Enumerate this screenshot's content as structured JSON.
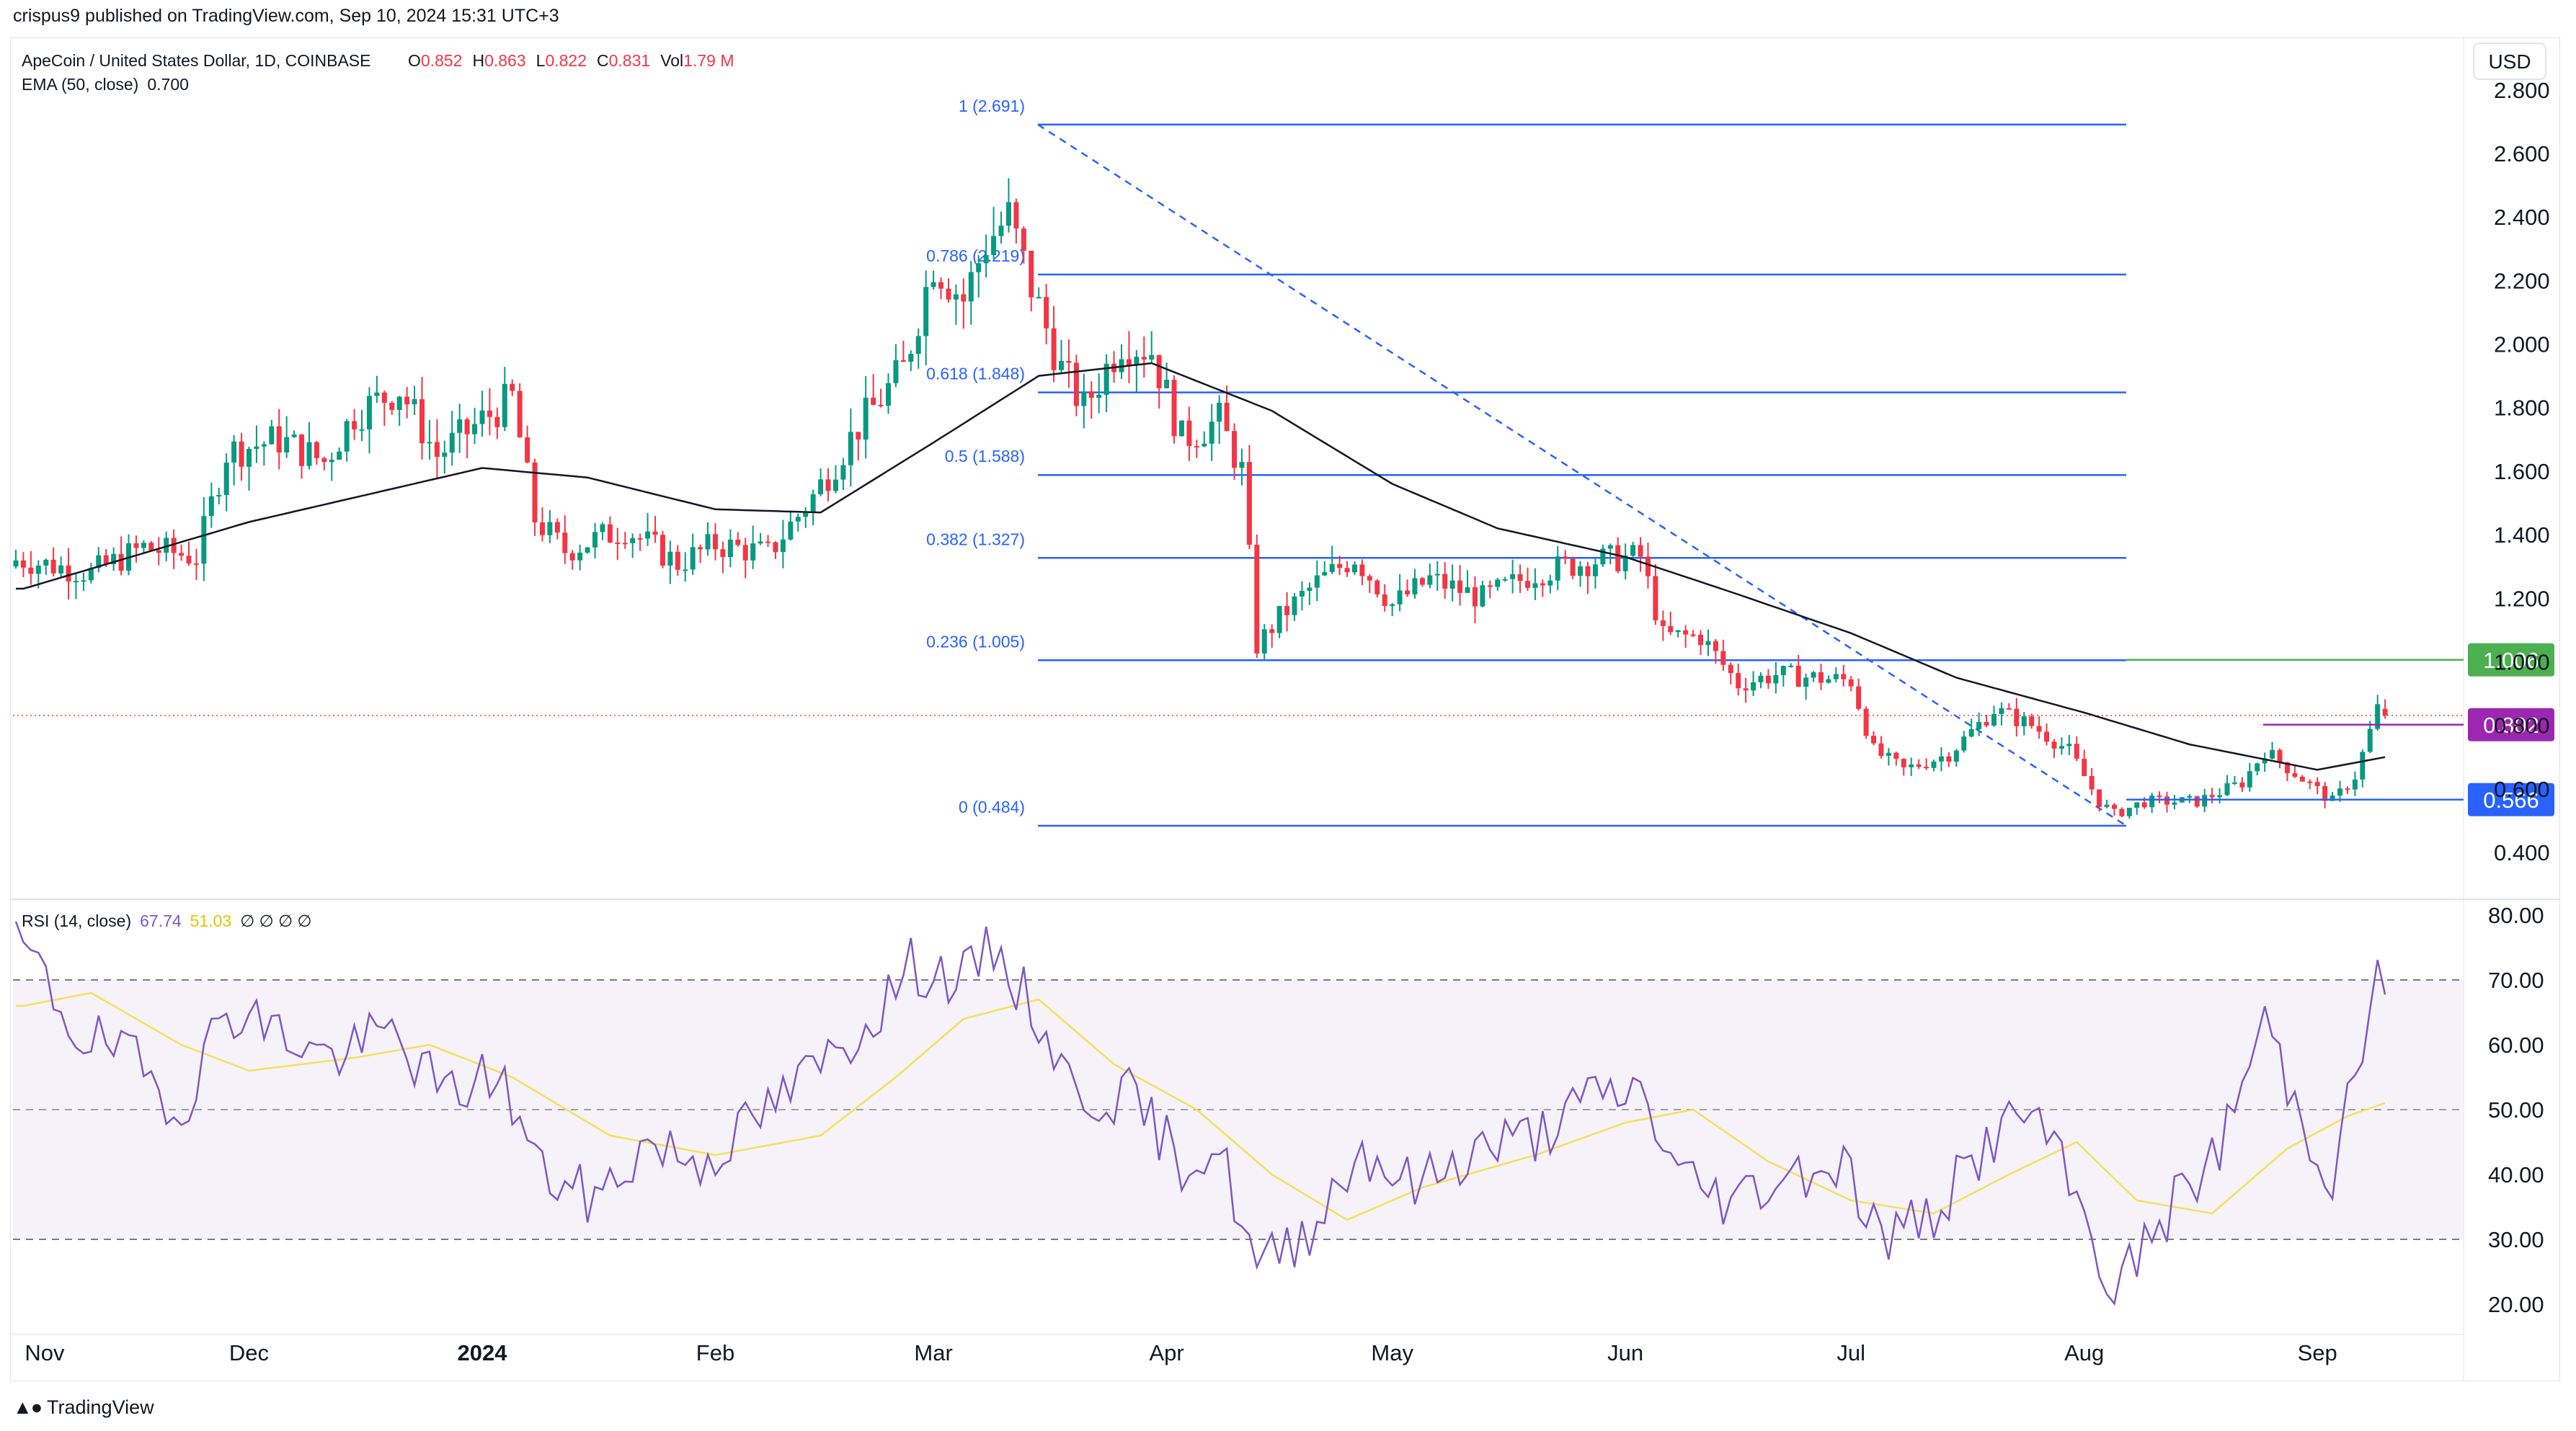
{
  "publisher_line": "crispus9 published on TradingView.com, Sep 10, 2024 15:31 UTC+3",
  "brand": "TradingView",
  "currency_button": "USD",
  "legend": {
    "symbol": "ApeCoin / United States Dollar, 1D, COINBASE",
    "o_label": "O",
    "o_value": "0.852",
    "h_label": "H",
    "h_value": "0.863",
    "l_label": "L",
    "l_value": "0.822",
    "c_label": "C",
    "c_value": "0.831",
    "vol_label": "Vol",
    "vol_value": "1.79 M",
    "ema_label": "EMA (50, close)",
    "ema_value": "0.700",
    "rsi_label": "RSI (14, close)",
    "rsi_value": "67.74",
    "rsi_ma_value": "51.03",
    "rsi_extra": "∅ ∅ ∅ ∅"
  },
  "colors": {
    "up": "#089981",
    "down": "#f23645",
    "ema": "#131722",
    "fib": "#2962ff",
    "rsi": "#7e57c2",
    "rsi_ma": "#f5e05a",
    "rsi_band": "#ede7f6",
    "marker_green": "#4caf50",
    "marker_purple": "#9c27b0",
    "marker_blue": "#2962ff"
  },
  "price_axis_labels": [
    "2.800",
    "2.600",
    "2.400",
    "2.200",
    "2.000",
    "1.800",
    "1.600",
    "1.400",
    "1.200",
    "1.000",
    "0.800",
    "0.600",
    "0.400"
  ],
  "rsi_axis_labels": [
    "80.00",
    "70.00",
    "60.00",
    "50.00",
    "40.00",
    "30.00",
    "20.00"
  ],
  "time_axis_labels": [
    "Nov",
    "Dec",
    "2024",
    "Feb",
    "Mar",
    "Apr",
    "May",
    "Jun",
    "Jul",
    "Aug",
    "Sep"
  ],
  "price_markers": [
    {
      "value": "1.006",
      "color": "#4caf50"
    },
    {
      "value": "0.802",
      "color": "#9c27b0"
    },
    {
      "value": "0.566",
      "color": "#2962ff"
    }
  ],
  "fib_levels": [
    {
      "label": "1 (2.691)",
      "price": 2.691
    },
    {
      "label": "0.786 (2.219)",
      "price": 2.219
    },
    {
      "label": "0.618 (1.848)",
      "price": 1.848
    },
    {
      "label": "0.5 (1.588)",
      "price": 1.588
    },
    {
      "label": "0.382 (1.327)",
      "price": 1.327
    },
    {
      "label": "0.236 (1.005)",
      "price": 1.005
    },
    {
      "label": "0 (0.484)",
      "price": 0.484
    }
  ],
  "chart_data": [
    {
      "type": "candlestick",
      "title": "ApeCoin / United States Dollar, 1D, COINBASE",
      "x_months": [
        "Nov",
        "Dec",
        "2024",
        "Feb",
        "Mar",
        "Apr",
        "May",
        "Jun",
        "Jul",
        "Aug",
        "Sep"
      ],
      "ylim": [
        0.38,
        2.82
      ],
      "grid": false,
      "close_series_anchors": [
        [
          "2023-11-01",
          1.32
        ],
        [
          "2023-11-10",
          1.28
        ],
        [
          "2023-11-17",
          1.36
        ],
        [
          "2023-11-24",
          1.33
        ],
        [
          "2023-11-28",
          1.66
        ],
        [
          "2023-12-05",
          1.7
        ],
        [
          "2023-12-11",
          1.63
        ],
        [
          "2023-12-15",
          1.78
        ],
        [
          "2023-12-21",
          1.86
        ],
        [
          "2023-12-26",
          1.65
        ],
        [
          "2024-01-01",
          1.76
        ],
        [
          "2024-01-05",
          1.83
        ],
        [
          "2024-01-08",
          1.45
        ],
        [
          "2024-01-12",
          1.35
        ],
        [
          "2024-01-20",
          1.42
        ],
        [
          "2024-01-27",
          1.31
        ],
        [
          "2024-02-01",
          1.37
        ],
        [
          "2024-02-08",
          1.34
        ],
        [
          "2024-02-14",
          1.52
        ],
        [
          "2024-02-20",
          1.74
        ],
        [
          "2024-02-26",
          1.92
        ],
        [
          "2024-03-01",
          2.26
        ],
        [
          "2024-03-05",
          2.14
        ],
        [
          "2024-03-08",
          2.32
        ],
        [
          "2024-03-11",
          2.4
        ],
        [
          "2024-03-14",
          2.18
        ],
        [
          "2024-03-18",
          1.92
        ],
        [
          "2024-03-21",
          1.8
        ],
        [
          "2024-03-26",
          2.01
        ],
        [
          "2024-03-30",
          1.98
        ],
        [
          "2024-04-03",
          1.7
        ],
        [
          "2024-04-08",
          1.76
        ],
        [
          "2024-04-11",
          1.6
        ],
        [
          "2024-04-13",
          1.05
        ],
        [
          "2024-04-16",
          1.14
        ],
        [
          "2024-04-21",
          1.25
        ],
        [
          "2024-04-26",
          1.33
        ],
        [
          "2024-05-01",
          1.18
        ],
        [
          "2024-05-06",
          1.26
        ],
        [
          "2024-05-13",
          1.2
        ],
        [
          "2024-05-20",
          1.28
        ],
        [
          "2024-05-28",
          1.32
        ],
        [
          "2024-06-03",
          1.33
        ],
        [
          "2024-06-06",
          1.08
        ],
        [
          "2024-06-11",
          1.08
        ],
        [
          "2024-06-16",
          0.93
        ],
        [
          "2024-06-21",
          0.96
        ],
        [
          "2024-06-26",
          0.95
        ],
        [
          "2024-07-01",
          0.94
        ],
        [
          "2024-07-04",
          0.72
        ],
        [
          "2024-07-08",
          0.66
        ],
        [
          "2024-07-14",
          0.71
        ],
        [
          "2024-07-20",
          0.85
        ],
        [
          "2024-07-25",
          0.8
        ],
        [
          "2024-07-30",
          0.72
        ],
        [
          "2024-08-03",
          0.56
        ],
        [
          "2024-08-05",
          0.52
        ],
        [
          "2024-08-09",
          0.56
        ],
        [
          "2024-08-16",
          0.56
        ],
        [
          "2024-08-22",
          0.62
        ],
        [
          "2024-08-25",
          0.72
        ],
        [
          "2024-08-29",
          0.65
        ],
        [
          "2024-09-03",
          0.56
        ],
        [
          "2024-09-06",
          0.64
        ],
        [
          "2024-09-09",
          0.85
        ],
        [
          "2024-09-10",
          0.831
        ]
      ],
      "ema_anchors": [
        [
          "2023-11-01",
          1.23
        ],
        [
          "2023-12-01",
          1.44
        ],
        [
          "2024-01-01",
          1.61
        ],
        [
          "2024-01-15",
          1.58
        ],
        [
          "2024-02-01",
          1.48
        ],
        [
          "2024-02-15",
          1.47
        ],
        [
          "2024-03-01",
          1.69
        ],
        [
          "2024-03-15",
          1.9
        ],
        [
          "2024-03-30",
          1.94
        ],
        [
          "2024-04-15",
          1.79
        ],
        [
          "2024-05-01",
          1.56
        ],
        [
          "2024-05-15",
          1.42
        ],
        [
          "2024-06-01",
          1.33
        ],
        [
          "2024-06-15",
          1.22
        ],
        [
          "2024-07-01",
          1.09
        ],
        [
          "2024-07-15",
          0.95
        ],
        [
          "2024-08-01",
          0.84
        ],
        [
          "2024-08-15",
          0.74
        ],
        [
          "2024-09-01",
          0.66
        ],
        [
          "2024-09-10",
          0.7
        ]
      ]
    },
    {
      "type": "line",
      "title": "RSI (14, close)",
      "ylim": [
        17,
        82
      ],
      "bands": [
        30,
        50,
        70
      ],
      "series": [
        {
          "name": "RSI (14, close)",
          "anchors": [
            [
              "2023-11-01",
              75
            ],
            [
              "2023-11-08",
              62
            ],
            [
              "2023-11-15",
              58
            ],
            [
              "2023-11-22",
              50
            ],
            [
              "2023-11-28",
              66
            ],
            [
              "2023-12-05",
              62
            ],
            [
              "2023-12-12",
              58
            ],
            [
              "2023-12-20",
              62
            ],
            [
              "2023-12-27",
              52
            ],
            [
              "2024-01-03",
              56
            ],
            [
              "2024-01-09",
              40
            ],
            [
              "2024-01-16",
              36
            ],
            [
              "2024-01-23",
              45
            ],
            [
              "2024-01-30",
              42
            ],
            [
              "2024-02-06",
              48
            ],
            [
              "2024-02-13",
              55
            ],
            [
              "2024-02-20",
              62
            ],
            [
              "2024-02-27",
              72
            ],
            [
              "2024-03-05",
              70
            ],
            [
              "2024-03-09",
              75
            ],
            [
              "2024-03-15",
              64
            ],
            [
              "2024-03-20",
              52
            ],
            [
              "2024-03-27",
              52
            ],
            [
              "2024-04-03",
              42
            ],
            [
              "2024-04-08",
              44
            ],
            [
              "2024-04-13",
              25
            ],
            [
              "2024-04-20",
              32
            ],
            [
              "2024-04-27",
              44
            ],
            [
              "2024-05-04",
              38
            ],
            [
              "2024-05-12",
              44
            ],
            [
              "2024-05-20",
              46
            ],
            [
              "2024-05-28",
              52
            ],
            [
              "2024-06-03",
              53
            ],
            [
              "2024-06-08",
              40
            ],
            [
              "2024-06-15",
              36
            ],
            [
              "2024-06-22",
              40
            ],
            [
              "2024-06-30",
              42
            ],
            [
              "2024-07-05",
              30
            ],
            [
              "2024-07-12",
              34
            ],
            [
              "2024-07-20",
              46
            ],
            [
              "2024-07-25",
              50
            ],
            [
              "2024-07-31",
              36
            ],
            [
              "2024-08-05",
              22
            ],
            [
              "2024-08-12",
              34
            ],
            [
              "2024-08-19",
              44
            ],
            [
              "2024-08-25",
              64
            ],
            [
              "2024-08-30",
              48
            ],
            [
              "2024-09-03",
              40
            ],
            [
              "2024-09-07",
              60
            ],
            [
              "2024-09-09",
              70
            ],
            [
              "2024-09-10",
              67.74
            ]
          ]
        },
        {
          "name": "RSI-based MA",
          "anchors": [
            [
              "2023-11-01",
              66
            ],
            [
              "2023-11-10",
              68
            ],
            [
              "2023-11-22",
              60
            ],
            [
              "2023-12-01",
              56
            ],
            [
              "2023-12-15",
              58
            ],
            [
              "2023-12-25",
              60
            ],
            [
              "2024-01-05",
              55
            ],
            [
              "2024-01-18",
              46
            ],
            [
              "2024-02-01",
              43
            ],
            [
              "2024-02-15",
              46
            ],
            [
              "2024-02-25",
              55
            ],
            [
              "2024-03-05",
              64
            ],
            [
              "2024-03-15",
              67
            ],
            [
              "2024-03-25",
              57
            ],
            [
              "2024-04-05",
              50
            ],
            [
              "2024-04-15",
              40
            ],
            [
              "2024-04-25",
              33
            ],
            [
              "2024-05-05",
              38
            ],
            [
              "2024-05-20",
              43
            ],
            [
              "2024-06-01",
              48
            ],
            [
              "2024-06-10",
              50
            ],
            [
              "2024-06-20",
              42
            ],
            [
              "2024-07-01",
              36
            ],
            [
              "2024-07-12",
              34
            ],
            [
              "2024-07-22",
              40
            ],
            [
              "2024-07-31",
              45
            ],
            [
              "2024-08-08",
              36
            ],
            [
              "2024-08-18",
              34
            ],
            [
              "2024-08-28",
              44
            ],
            [
              "2024-09-05",
              49
            ],
            [
              "2024-09-10",
              51.03
            ]
          ]
        }
      ]
    }
  ]
}
